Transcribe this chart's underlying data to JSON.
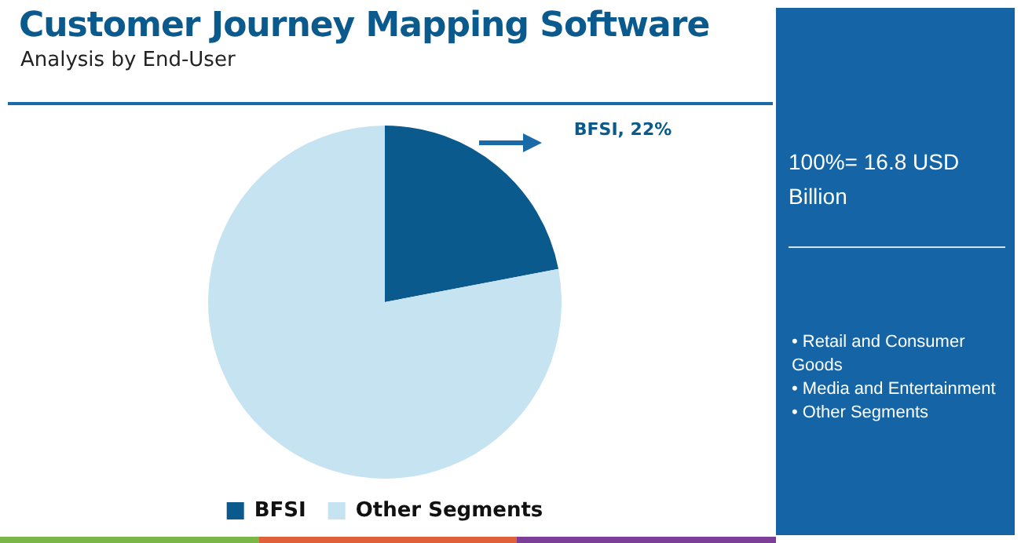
{
  "chart_data": {
    "type": "pie",
    "title": "Customer Journey Mapping Software",
    "subtitle": "Analysis by End-User",
    "categories": [
      "BFSI",
      "Other Segments"
    ],
    "values": [
      22,
      78
    ],
    "colors": [
      "#0b5a8e",
      "#c6e3f2"
    ],
    "value_labels": [
      "BFSI, 22%",
      null
    ],
    "legend": "bottom",
    "annotations": [
      "100%= 16.8 USD Billion",
      "• Retail and Consumer Goods",
      "• Media and Entertainment",
      "• Other Segments"
    ]
  }
}
